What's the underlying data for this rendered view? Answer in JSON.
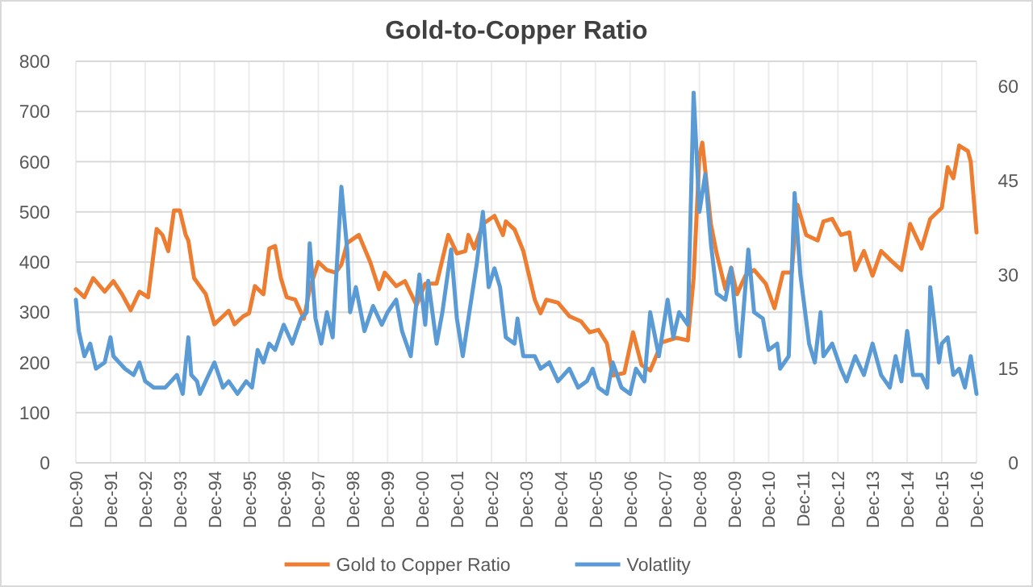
{
  "chart_data": {
    "type": "line",
    "title": "Gold-to-Copper Ratio",
    "xlim": [
      "1990-12",
      "2016-12"
    ],
    "xticks": [
      {
        "value": "1990-12",
        "label": "Dec-90"
      },
      {
        "value": "1991-12",
        "label": "Dec-91"
      },
      {
        "value": "1992-12",
        "label": "Dec-92"
      },
      {
        "value": "1993-12",
        "label": "Dec-93"
      },
      {
        "value": "1994-12",
        "label": "Dec-94"
      },
      {
        "value": "1995-12",
        "label": "Dec-95"
      },
      {
        "value": "1996-12",
        "label": "Dec-96"
      },
      {
        "value": "1997-12",
        "label": "Dec-97"
      },
      {
        "value": "1998-12",
        "label": "Dec-98"
      },
      {
        "value": "1999-12",
        "label": "Dec-99"
      },
      {
        "value": "2000-12",
        "label": "Dec-00"
      },
      {
        "value": "2001-12",
        "label": "Dec-01"
      },
      {
        "value": "2002-12",
        "label": "Dec-02"
      },
      {
        "value": "2003-12",
        "label": "Dec-03"
      },
      {
        "value": "2004-12",
        "label": "Dec-04"
      },
      {
        "value": "2005-12",
        "label": "Dec-05"
      },
      {
        "value": "2006-12",
        "label": "Dec-06"
      },
      {
        "value": "2007-12",
        "label": "Dec-07"
      },
      {
        "value": "2008-12",
        "label": "Dec-08"
      },
      {
        "value": "2009-12",
        "label": "Dec-09"
      },
      {
        "value": "2010-12",
        "label": "Dec-10"
      },
      {
        "value": "2011-12",
        "label": "Dec-11"
      },
      {
        "value": "2012-12",
        "label": "Dec-12"
      },
      {
        "value": "2013-12",
        "label": "Dec-13"
      },
      {
        "value": "2014-12",
        "label": "Dec-14"
      },
      {
        "value": "2015-12",
        "label": "Dec-15"
      },
      {
        "value": "2016-12",
        "label": "Dec-16"
      }
    ],
    "ylim": [
      0,
      800
    ],
    "yticks": [
      0,
      100,
      200,
      300,
      400,
      500,
      600,
      700,
      800
    ],
    "y2lim": [
      0,
      64
    ],
    "y2ticks": [
      0,
      15,
      30,
      45,
      60
    ],
    "grid": true,
    "legend": "bottom",
    "line_style": "solid",
    "series": [
      {
        "name": "Gold to Copper Ratio",
        "color": "#ed7d31",
        "x": [
          "1990-12",
          "1991-03",
          "1991-06",
          "1991-10",
          "1992-01",
          "1992-04",
          "1992-07",
          "1992-10",
          "1993-01",
          "1993-04",
          "1993-06",
          "1993-08",
          "1993-10",
          "1993-12",
          "1994-02",
          "1994-03",
          "1994-05",
          "1994-07",
          "1994-09",
          "1994-12",
          "1995-03",
          "1995-05",
          "1995-07",
          "1995-10",
          "1995-12",
          "1996-02",
          "1996-05",
          "1996-07",
          "1996-09",
          "1996-11",
          "1997-01",
          "1997-04",
          "1997-07",
          "1997-09",
          "1997-12",
          "1998-03",
          "1998-06",
          "1998-08",
          "1998-10",
          "1999-02",
          "1999-06",
          "1999-09",
          "1999-11",
          "2000-03",
          "2000-06",
          "2000-10",
          "2001-01",
          "2001-05",
          "2001-09",
          "2001-12",
          "2002-03",
          "2002-04",
          "2002-06",
          "2002-09",
          "2003-01",
          "2003-04",
          "2003-05",
          "2003-08",
          "2003-11",
          "2004-03",
          "2004-05",
          "2004-07",
          "2004-11",
          "2005-03",
          "2005-07",
          "2005-10",
          "2006-01",
          "2006-04",
          "2006-06",
          "2006-10",
          "2007-01",
          "2007-04",
          "2007-07",
          "2007-11",
          "2008-04",
          "2008-08",
          "2008-10",
          "2008-12",
          "2009-01",
          "2009-04",
          "2009-06",
          "2009-09",
          "2009-11",
          "2010-01",
          "2010-04",
          "2010-07",
          "2010-11",
          "2011-02",
          "2011-05",
          "2011-08",
          "2011-10",
          "2012-01",
          "2012-05",
          "2012-07",
          "2012-10",
          "2013-01",
          "2013-04",
          "2013-06",
          "2013-09",
          "2013-12",
          "2014-03",
          "2014-06",
          "2014-10",
          "2015-01",
          "2015-05",
          "2015-08",
          "2015-12",
          "2016-02",
          "2016-04",
          "2016-06",
          "2016-09",
          "2016-10",
          "2016-12"
        ],
        "values": [
          346,
          330,
          368,
          341,
          362,
          336,
          304,
          341,
          330,
          466,
          454,
          422,
          503,
          503,
          454,
          443,
          368,
          352,
          336,
          276,
          292,
          303,
          276,
          292,
          298,
          352,
          336,
          427,
          432,
          368,
          330,
          325,
          287,
          346,
          400,
          384,
          379,
          395,
          438,
          454,
          400,
          346,
          379,
          352,
          362,
          314,
          357,
          357,
          454,
          417,
          422,
          454,
          427,
          476,
          492,
          454,
          481,
          465,
          422,
          325,
          298,
          325,
          319,
          292,
          282,
          260,
          265,
          238,
          174,
          179,
          260,
          195,
          184,
          240,
          249,
          244,
          368,
          611,
          638,
          476,
          417,
          346,
          389,
          336,
          373,
          384,
          357,
          308,
          379,
          379,
          514,
          454,
          443,
          481,
          486,
          454,
          459,
          384,
          422,
          373,
          422,
          405,
          384,
          476,
          427,
          486,
          508,
          589,
          567,
          632,
          621,
          600,
          459
        ]
      },
      {
        "name": "Volatlity",
        "color": "#5b9bd5",
        "axis": "y2",
        "x": [
          "1990-12",
          "1991-01",
          "1991-03",
          "1991-05",
          "1991-07",
          "1991-10",
          "1991-12",
          "1992-01",
          "1992-05",
          "1992-08",
          "1992-10",
          "1992-12",
          "1993-03",
          "1993-07",
          "1993-11",
          "1994-01",
          "1994-03",
          "1994-04",
          "1994-06",
          "1994-07",
          "1994-10",
          "1994-12",
          "1995-03",
          "1995-05",
          "1995-08",
          "1995-11",
          "1996-01",
          "1996-03",
          "1996-05",
          "1996-07",
          "1996-09",
          "1996-12",
          "1997-03",
          "1997-06",
          "1997-08",
          "1997-09",
          "1997-11",
          "1998-01",
          "1998-03",
          "1998-05",
          "1998-08",
          "1998-10",
          "1998-11",
          "1999-01",
          "1999-04",
          "1999-07",
          "1999-10",
          "1999-12",
          "2000-03",
          "2000-05",
          "2000-08",
          "2000-11",
          "2001-01",
          "2001-02",
          "2001-05",
          "2001-07",
          "2001-10",
          "2001-12",
          "2002-02",
          "2002-04",
          "2002-07",
          "2002-09",
          "2002-11",
          "2003-01",
          "2003-03",
          "2003-05",
          "2003-08",
          "2003-09",
          "2003-11",
          "2004-03",
          "2004-05",
          "2004-08",
          "2004-11",
          "2005-03",
          "2005-06",
          "2005-09",
          "2005-11",
          "2006-01",
          "2006-04",
          "2006-06",
          "2006-09",
          "2006-12",
          "2007-02",
          "2007-05",
          "2007-07",
          "2007-10",
          "2008-01",
          "2008-03",
          "2008-05",
          "2008-08",
          "2008-10",
          "2008-12",
          "2009-02",
          "2009-04",
          "2009-06",
          "2009-09",
          "2009-11",
          "2010-01",
          "2010-02",
          "2010-05",
          "2010-07",
          "2010-10",
          "2010-12",
          "2011-03",
          "2011-04",
          "2011-07",
          "2011-09",
          "2011-11",
          "2012-02",
          "2012-04",
          "2012-06",
          "2012-07",
          "2012-10",
          "2013-01",
          "2013-03",
          "2013-06",
          "2013-09",
          "2013-12",
          "2014-03",
          "2014-06",
          "2014-08",
          "2014-10",
          "2014-12",
          "2015-02",
          "2015-05",
          "2015-07",
          "2015-08",
          "2015-11",
          "2015-12",
          "2016-02",
          "2016-04",
          "2016-06",
          "2016-08",
          "2016-10",
          "2016-12"
        ],
        "values": [
          26,
          21,
          17,
          19,
          15,
          16,
          20,
          17,
          15,
          14,
          16,
          13,
          12,
          12,
          14,
          11,
          20,
          14,
          13,
          11,
          14,
          16,
          12,
          13,
          11,
          13,
          12,
          18,
          16,
          19,
          18,
          22,
          19,
          23,
          24,
          35,
          23,
          19,
          24,
          20,
          44,
          34,
          24,
          28,
          21,
          25,
          22,
          24,
          26,
          21,
          17,
          30,
          22,
          29,
          19,
          24,
          34,
          23,
          17,
          23,
          32,
          40,
          28,
          31,
          28,
          20,
          19,
          23,
          17,
          17,
          15,
          16,
          13,
          15,
          12,
          13,
          15,
          12,
          11,
          16,
          12,
          11,
          15,
          13,
          24,
          17,
          26,
          20,
          24,
          22,
          59,
          40,
          46,
          35,
          27,
          26,
          31,
          21,
          17,
          34,
          24,
          23,
          18,
          19,
          15,
          17,
          43,
          30,
          19,
          16,
          24,
          17,
          19,
          15,
          13,
          17,
          14,
          19,
          14,
          12,
          17,
          13,
          21,
          14,
          14,
          12,
          28,
          16,
          19,
          20,
          14,
          15,
          12,
          17,
          11
        ]
      }
    ]
  }
}
